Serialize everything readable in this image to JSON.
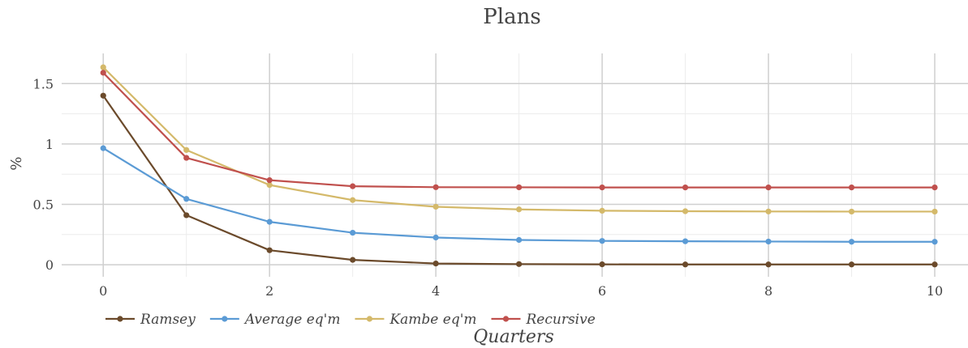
{
  "chart_data": {
    "type": "line",
    "title": "Plans",
    "xlabel": "Quarters",
    "ylabel": "%",
    "x": [
      0,
      1,
      2,
      3,
      4,
      5,
      6,
      7,
      8,
      9,
      10
    ],
    "xlim": [
      -0.5,
      10.4
    ],
    "ylim": [
      -0.1,
      1.75
    ],
    "x_ticks": [
      0,
      2,
      4,
      6,
      8,
      10
    ],
    "y_ticks": [
      0,
      0.5,
      1,
      1.5
    ],
    "x_tick_labels": [
      "0",
      "2",
      "4",
      "6",
      "8",
      "10"
    ],
    "y_tick_labels": [
      "0",
      "0.5",
      "1",
      "1.5"
    ],
    "grid": true,
    "legend_position": "bottom-left",
    "series": [
      {
        "name": "Ramsey",
        "color": "#6b4a2b",
        "values": [
          1.4,
          0.41,
          0.12,
          0.04,
          0.01,
          0.005,
          0.003,
          0.002,
          0.002,
          0.002,
          0.002
        ]
      },
      {
        "name": "Average eq'm",
        "color": "#5b9bd5",
        "values": [
          0.965,
          0.545,
          0.355,
          0.265,
          0.225,
          0.205,
          0.197,
          0.194,
          0.192,
          0.19,
          0.19
        ]
      },
      {
        "name": "Kambe eq'm",
        "color": "#d4b96a",
        "values": [
          1.635,
          0.95,
          0.66,
          0.535,
          0.48,
          0.458,
          0.447,
          0.443,
          0.441,
          0.44,
          0.44
        ]
      },
      {
        "name": "Recursive",
        "color": "#c0504d",
        "values": [
          1.59,
          0.885,
          0.7,
          0.65,
          0.642,
          0.641,
          0.64,
          0.64,
          0.64,
          0.64,
          0.64
        ]
      }
    ]
  }
}
